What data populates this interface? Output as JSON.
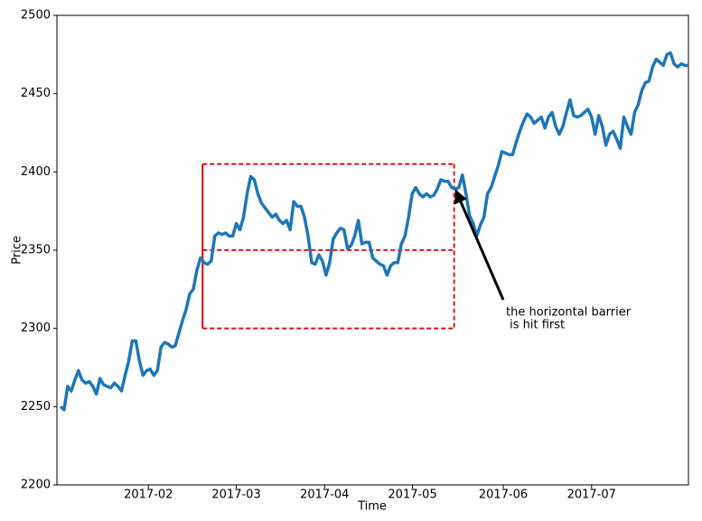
{
  "chart_data": {
    "type": "line",
    "xlabel": "Time",
    "ylabel": "Price",
    "color": "#1f77b4",
    "values": [
      2250,
      2248,
      2263,
      2260,
      2267,
      2273,
      2267,
      2265,
      2266,
      2263,
      2258,
      2268,
      2264,
      2263,
      2262,
      2265,
      2263,
      2260,
      2270,
      2279,
      2292,
      2292,
      2279,
      2270,
      2273,
      2274,
      2270,
      2273,
      2288,
      2291,
      2290,
      2288,
      2289,
      2297,
      2305,
      2312,
      2322,
      2325,
      2337,
      2345,
      2342,
      2341,
      2343,
      2359,
      2361,
      2360,
      2361,
      2359,
      2359,
      2367,
      2363,
      2371,
      2386,
      2397,
      2395,
      2386,
      2380,
      2377,
      2374,
      2371,
      2373,
      2369,
      2367,
      2369,
      2363,
      2381,
      2378,
      2378,
      2371,
      2359,
      2342,
      2341,
      2347,
      2343,
      2334,
      2342,
      2357,
      2361,
      2364,
      2363,
      2351,
      2353,
      2359,
      2369,
      2354,
      2355,
      2355,
      2345,
      2343,
      2341,
      2340,
      2334,
      2340,
      2342,
      2342,
      2354,
      2359,
      2371,
      2386,
      2390,
      2386,
      2384,
      2386,
      2384,
      2385,
      2389,
      2395,
      2394,
      2394,
      2390,
      2389,
      2390,
      2398,
      2386,
      2372,
      2367,
      2359,
      2366,
      2371,
      2386,
      2390,
      2397,
      2404,
      2413,
      2412,
      2411,
      2411,
      2419,
      2426,
      2432,
      2437,
      2435,
      2431,
      2433,
      2435,
      2428,
      2435,
      2438,
      2429,
      2424,
      2429,
      2438,
      2446,
      2436,
      2435,
      2436,
      2438,
      2440,
      2435,
      2424,
      2436,
      2429,
      2417,
      2424,
      2426,
      2421,
      2415,
      2435,
      2429,
      2424,
      2438,
      2443,
      2452,
      2457,
      2458,
      2467,
      2472,
      2470,
      2468,
      2475,
      2476,
      2469,
      2467,
      2469,
      2468,
      2468
    ],
    "xlim": [
      -1,
      175
    ],
    "xticks": [
      {
        "value": 24.5,
        "label": "2017-02"
      },
      {
        "value": 49,
        "label": "2017-03"
      },
      {
        "value": 73.6,
        "label": "2017-04"
      },
      {
        "value": 98.1,
        "label": "2017-05"
      },
      {
        "value": 123.4,
        "label": "2017-06"
      },
      {
        "value": 148,
        "label": "2017-07"
      }
    ],
    "ylim": [
      2200,
      2500
    ],
    "yticks": [
      2200,
      2250,
      2300,
      2350,
      2400,
      2450,
      2500
    ],
    "barrier": {
      "color": "#e00000",
      "upper": 2405,
      "lower": 2300,
      "entry": 2350,
      "start": 39.6,
      "end": 109.7
    },
    "annotation": {
      "text": [
        "the horizontal barrier",
        " is hit first"
      ],
      "xy": [
        110.2,
        2388
      ]
    }
  }
}
